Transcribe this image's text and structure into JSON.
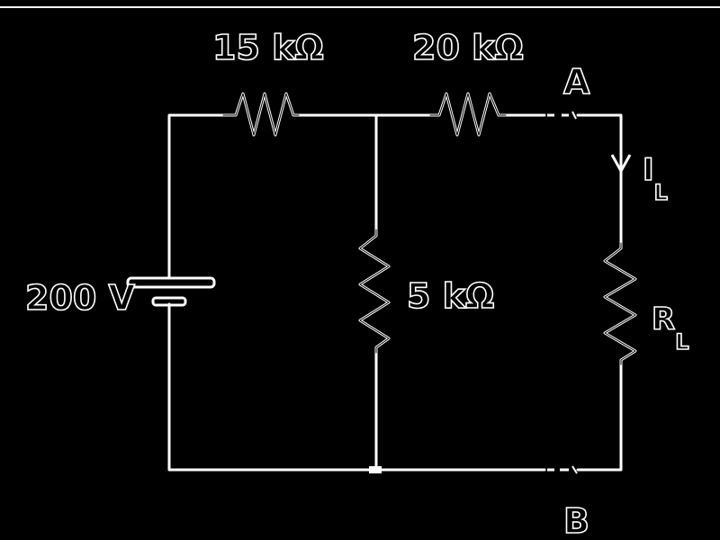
{
  "diagram": {
    "source": {
      "label": "200 V"
    },
    "resistors": {
      "r1": {
        "label": "15 kΩ"
      },
      "r2": {
        "label": "20 kΩ"
      },
      "r3": {
        "label": "5 kΩ"
      },
      "rl": {
        "label": "R",
        "subscript": "L"
      }
    },
    "terminals": {
      "a": "A",
      "b": "B"
    },
    "current": {
      "label": "I",
      "subscript": "L"
    }
  }
}
